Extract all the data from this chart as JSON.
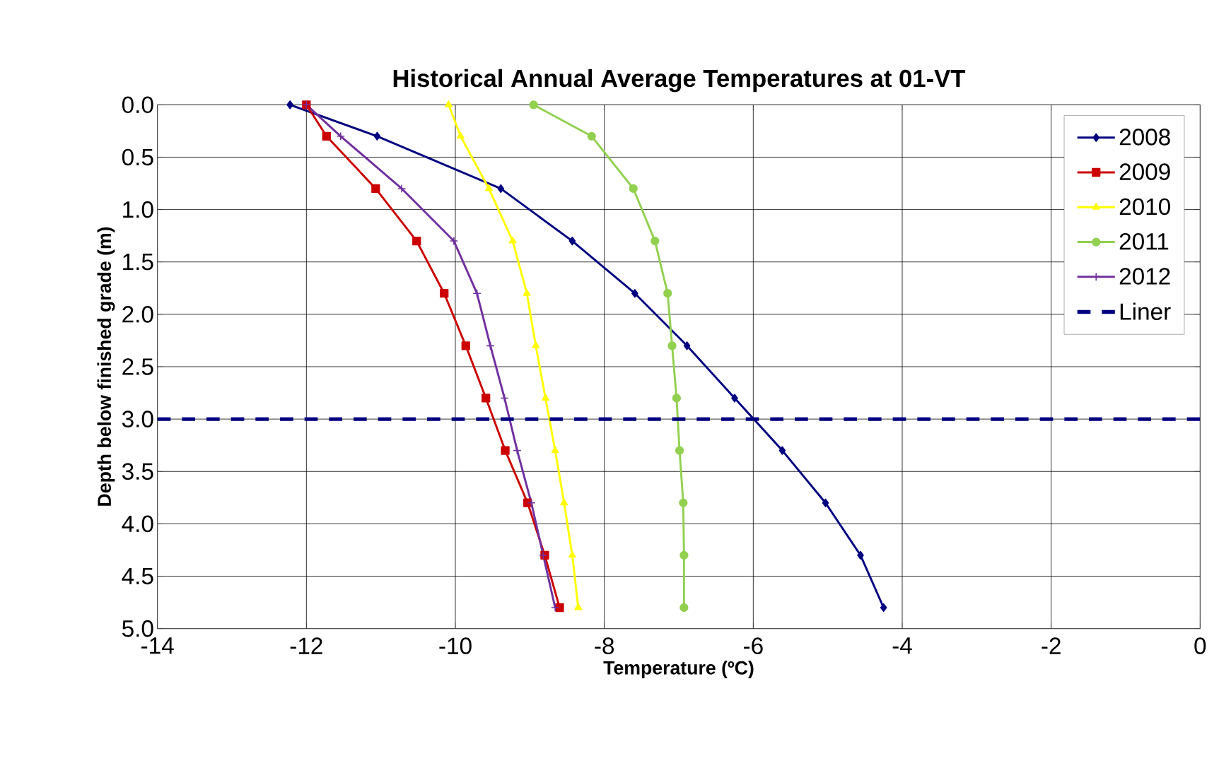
{
  "chart_data": {
    "type": "line",
    "title": "Historical Annual Average Temperatures at 01-VT",
    "xlabel": "Temperature  (ºC)",
    "ylabel": "Depth below finished grade (m)",
    "xlim": [
      -14,
      0
    ],
    "xticks": [
      -14,
      -12,
      -10,
      -8,
      -6,
      -4,
      -2,
      0
    ],
    "ylim": [
      5,
      0
    ],
    "yticks": [
      {
        "value": 0,
        "label": "0.0"
      },
      {
        "value": 0.5,
        "label": "0.5"
      },
      {
        "value": 1,
        "label": "1.0"
      },
      {
        "value": 1.5,
        "label": "1.5"
      },
      {
        "value": 2,
        "label": "2.0"
      },
      {
        "value": 2.5,
        "label": "2.5"
      },
      {
        "value": 3,
        "label": "3.0"
      },
      {
        "value": 3.5,
        "label": "3.5"
      },
      {
        "value": 4,
        "label": "4.0"
      },
      {
        "value": 4.5,
        "label": "4.5"
      },
      {
        "value": 5,
        "label": "5.0"
      }
    ],
    "grid": true,
    "legend": "top right",
    "series": [
      {
        "name": "2008",
        "color": "#000080",
        "marker": "diamond",
        "x": [
          -12.22,
          -11.05,
          -9.39,
          -8.43,
          -7.59,
          -6.89,
          -6.25,
          -5.61,
          -5.03,
          -4.56,
          -4.25
        ],
        "values": [
          0,
          0.3,
          0.8,
          1.3,
          1.8,
          2.3,
          2.8,
          3.3,
          3.8,
          4.3,
          4.8
        ]
      },
      {
        "name": "2009",
        "color": "#cc0000",
        "marker": "square",
        "x": [
          -12.0,
          -11.73,
          -11.07,
          -10.52,
          -10.15,
          -9.86,
          -9.59,
          -9.33,
          -9.03,
          -8.8,
          -8.6
        ],
        "values": [
          0,
          0.3,
          0.8,
          1.3,
          1.8,
          2.3,
          2.8,
          3.3,
          3.8,
          4.3,
          4.8
        ]
      },
      {
        "name": "2010",
        "color": "#ffff00",
        "marker": "triangle",
        "x": [
          -10.09,
          -9.93,
          -9.55,
          -9.23,
          -9.04,
          -8.92,
          -8.79,
          -8.66,
          -8.54,
          -8.43,
          -8.35
        ],
        "values": [
          0,
          0.3,
          0.8,
          1.3,
          1.8,
          2.3,
          2.8,
          3.3,
          3.8,
          4.3,
          4.8
        ]
      },
      {
        "name": "2011",
        "color": "#92d050",
        "marker": "circle",
        "x": [
          -8.95,
          -8.17,
          -7.61,
          -7.32,
          -7.15,
          -7.09,
          -7.03,
          -6.99,
          -6.94,
          -6.93,
          -6.93
        ],
        "values": [
          0,
          0.3,
          0.8,
          1.3,
          1.8,
          2.3,
          2.8,
          3.3,
          3.8,
          4.3,
          4.8
        ]
      },
      {
        "name": "2012",
        "color": "#7030a0",
        "marker": "cross",
        "x": [
          -12.0,
          -11.54,
          -10.72,
          -10.02,
          -9.71,
          -9.53,
          -9.34,
          -9.17,
          -8.98,
          -8.82,
          -8.66
        ],
        "values": [
          0,
          0.3,
          0.8,
          1.3,
          1.8,
          2.3,
          2.8,
          3.3,
          3.8,
          4.3,
          4.8
        ]
      },
      {
        "name": "Liner",
        "color": "#000080",
        "marker": "none",
        "line_style": "dashed",
        "x": [
          -14,
          0
        ],
        "values": [
          3,
          3
        ]
      }
    ]
  }
}
